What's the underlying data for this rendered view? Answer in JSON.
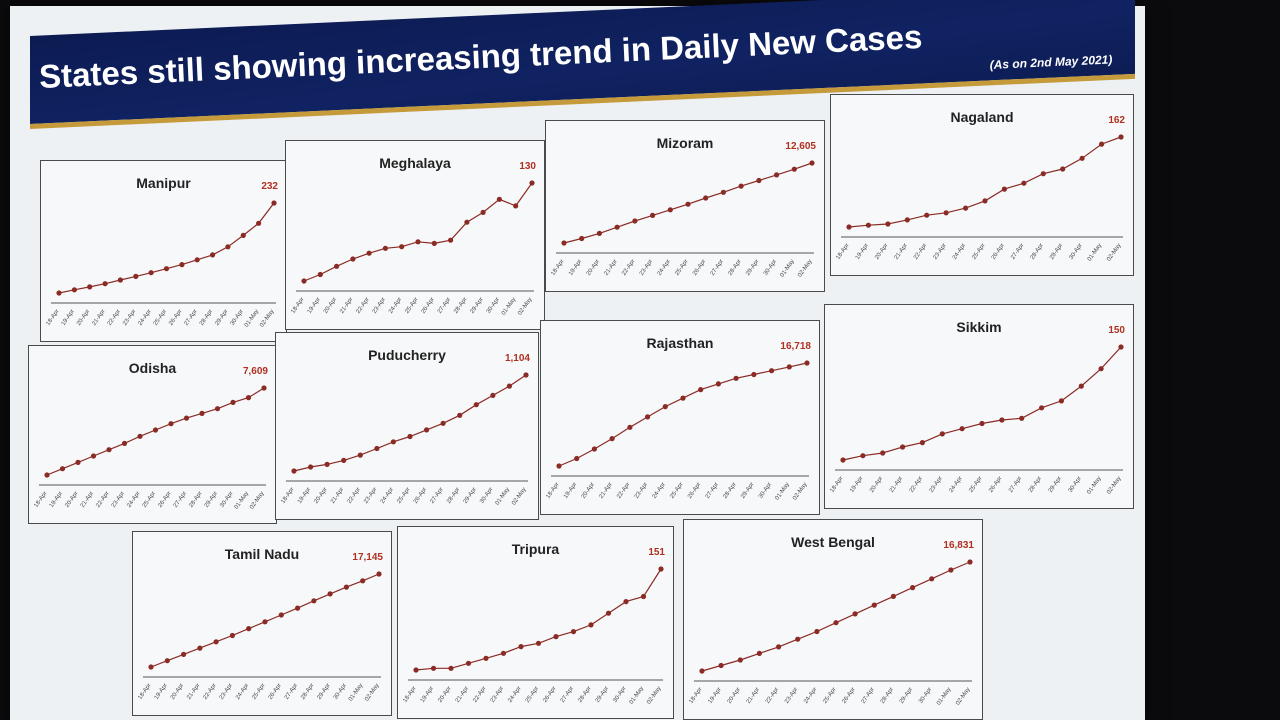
{
  "header": {
    "title": "States still showing increasing trend in Daily New Cases",
    "date_note": "(As on 2nd May 2021)"
  },
  "colors": {
    "line": "#8b2b25",
    "value_label": "#b03020",
    "title_bar": "#0f205e",
    "accent": "#c49a3a"
  },
  "chart_data": [
    {
      "type": "line",
      "title": "Manipur",
      "categories": [
        "18-Apr",
        "19-Apr",
        "20-Apr",
        "21-Apr",
        "22-Apr",
        "23-Apr",
        "24-Apr",
        "25-Apr",
        "26-Apr",
        "27-Apr",
        "28-Apr",
        "29-Apr",
        "30-Apr",
        "01-May",
        "02-May"
      ],
      "values": [
        10,
        18,
        25,
        33,
        42,
        51,
        60,
        70,
        80,
        92,
        104,
        124,
        152,
        182,
        232
      ],
      "value_label": "232"
    },
    {
      "type": "line",
      "title": "Meghalaya",
      "categories": [
        "18-Apr",
        "19-Apr",
        "20-Apr",
        "21-Apr",
        "22-Apr",
        "23-Apr",
        "24-Apr",
        "25-Apr",
        "26-Apr",
        "27-Apr",
        "28-Apr",
        "29-Apr",
        "30-Apr",
        "01-May",
        "02-May"
      ],
      "values": [
        10,
        18,
        28,
        37,
        44,
        50,
        52,
        58,
        56,
        60,
        82,
        94,
        110,
        102,
        130
      ],
      "value_label": "130"
    },
    {
      "type": "line",
      "title": "Mizoram",
      "categories": [
        "18-Apr",
        "19-Apr",
        "20-Apr",
        "21-Apr",
        "22-Apr",
        "23-Apr",
        "24-Apr",
        "25-Apr",
        "26-Apr",
        "27-Apr",
        "28-Apr",
        "29-Apr",
        "30-Apr",
        "01-May",
        "02-May"
      ],
      "values": [
        5500,
        5900,
        6350,
        6900,
        7450,
        7950,
        8450,
        8950,
        9500,
        10000,
        10550,
        11050,
        11550,
        12050,
        12605
      ],
      "value_label": "12,605"
    },
    {
      "type": "line",
      "title": "Nagaland",
      "categories": [
        "18-Apr",
        "19-Apr",
        "20-Apr",
        "21-Apr",
        "22-Apr",
        "23-Apr",
        "24-Apr",
        "25-Apr",
        "26-Apr",
        "27-Apr",
        "28-Apr",
        "29-Apr",
        "30-Apr",
        "01-May",
        "02-May"
      ],
      "values": [
        10,
        13,
        15,
        22,
        30,
        34,
        42,
        54,
        74,
        84,
        100,
        108,
        126,
        150,
        162
      ],
      "value_label": "162"
    },
    {
      "type": "line",
      "title": "Odisha",
      "categories": [
        "18-Apr",
        "19-Apr",
        "20-Apr",
        "21-Apr",
        "22-Apr",
        "23-Apr",
        "24-Apr",
        "25-Apr",
        "26-Apr",
        "27-Apr",
        "28-Apr",
        "29-Apr",
        "30-Apr",
        "01-May",
        "02-May"
      ],
      "values": [
        2100,
        2500,
        2900,
        3300,
        3700,
        4100,
        4550,
        4950,
        5350,
        5700,
        6000,
        6300,
        6700,
        7000,
        7609
      ],
      "value_label": "7,609"
    },
    {
      "type": "line",
      "title": "Puducherry",
      "categories": [
        "18-Apr",
        "19-Apr",
        "20-Apr",
        "21-Apr",
        "22-Apr",
        "23-Apr",
        "24-Apr",
        "25-Apr",
        "26-Apr",
        "27-Apr",
        "28-Apr",
        "29-Apr",
        "30-Apr",
        "01-May",
        "02-May"
      ],
      "values": [
        380,
        410,
        430,
        460,
        500,
        550,
        600,
        640,
        690,
        740,
        800,
        880,
        950,
        1020,
        1104
      ],
      "value_label": "1,104"
    },
    {
      "type": "line",
      "title": "Rajasthan",
      "categories": [
        "18-Apr",
        "19-Apr",
        "20-Apr",
        "21-Apr",
        "22-Apr",
        "23-Apr",
        "24-Apr",
        "25-Apr",
        "26-Apr",
        "27-Apr",
        "28-Apr",
        "29-Apr",
        "30-Apr",
        "01-May",
        "02-May"
      ],
      "values": [
        5800,
        6600,
        7600,
        8700,
        9900,
        11000,
        12100,
        13000,
        13900,
        14500,
        15100,
        15500,
        15900,
        16300,
        16718
      ],
      "value_label": "16,718"
    },
    {
      "type": "line",
      "title": "Sikkim",
      "categories": [
        "18-Apr",
        "19-Apr",
        "20-Apr",
        "21-Apr",
        "22-Apr",
        "23-Apr",
        "24-Apr",
        "25-Apr",
        "26-Apr",
        "27-Apr",
        "28-Apr",
        "29-Apr",
        "30-Apr",
        "01-May",
        "02-May"
      ],
      "values": [
        20,
        25,
        28,
        35,
        40,
        50,
        56,
        62,
        66,
        68,
        80,
        88,
        105,
        125,
        150
      ],
      "value_label": "150"
    },
    {
      "type": "line",
      "title": "Tamil Nadu",
      "categories": [
        "18-Apr",
        "19-Apr",
        "20-Apr",
        "21-Apr",
        "22-Apr",
        "23-Apr",
        "24-Apr",
        "25-Apr",
        "26-Apr",
        "27-Apr",
        "28-Apr",
        "29-Apr",
        "30-Apr",
        "01-May",
        "02-May"
      ],
      "values": [
        8300,
        8900,
        9500,
        10100,
        10700,
        11300,
        11950,
        12600,
        13250,
        13900,
        14600,
        15250,
        15900,
        16500,
        17145
      ],
      "value_label": "17,145"
    },
    {
      "type": "line",
      "title": "Tripura",
      "categories": [
        "18-Apr",
        "19-Apr",
        "20-Apr",
        "21-Apr",
        "22-Apr",
        "23-Apr",
        "24-Apr",
        "25-Apr",
        "26-Apr",
        "27-Apr",
        "28-Apr",
        "29-Apr",
        "30-Apr",
        "01-May",
        "02-May"
      ],
      "values": [
        30,
        32,
        32,
        38,
        44,
        50,
        58,
        62,
        70,
        76,
        84,
        98,
        112,
        118,
        151
      ],
      "value_label": "151"
    },
    {
      "type": "line",
      "title": "West Bengal",
      "categories": [
        "18-Apr",
        "19-Apr",
        "20-Apr",
        "21-Apr",
        "22-Apr",
        "23-Apr",
        "24-Apr",
        "25-Apr",
        "26-Apr",
        "27-Apr",
        "28-Apr",
        "29-Apr",
        "30-Apr",
        "01-May",
        "02-May"
      ],
      "values": [
        6900,
        7400,
        7900,
        8500,
        9100,
        9800,
        10500,
        11300,
        12100,
        12900,
        13700,
        14500,
        15300,
        16100,
        16831
      ],
      "value_label": "16,831"
    }
  ]
}
